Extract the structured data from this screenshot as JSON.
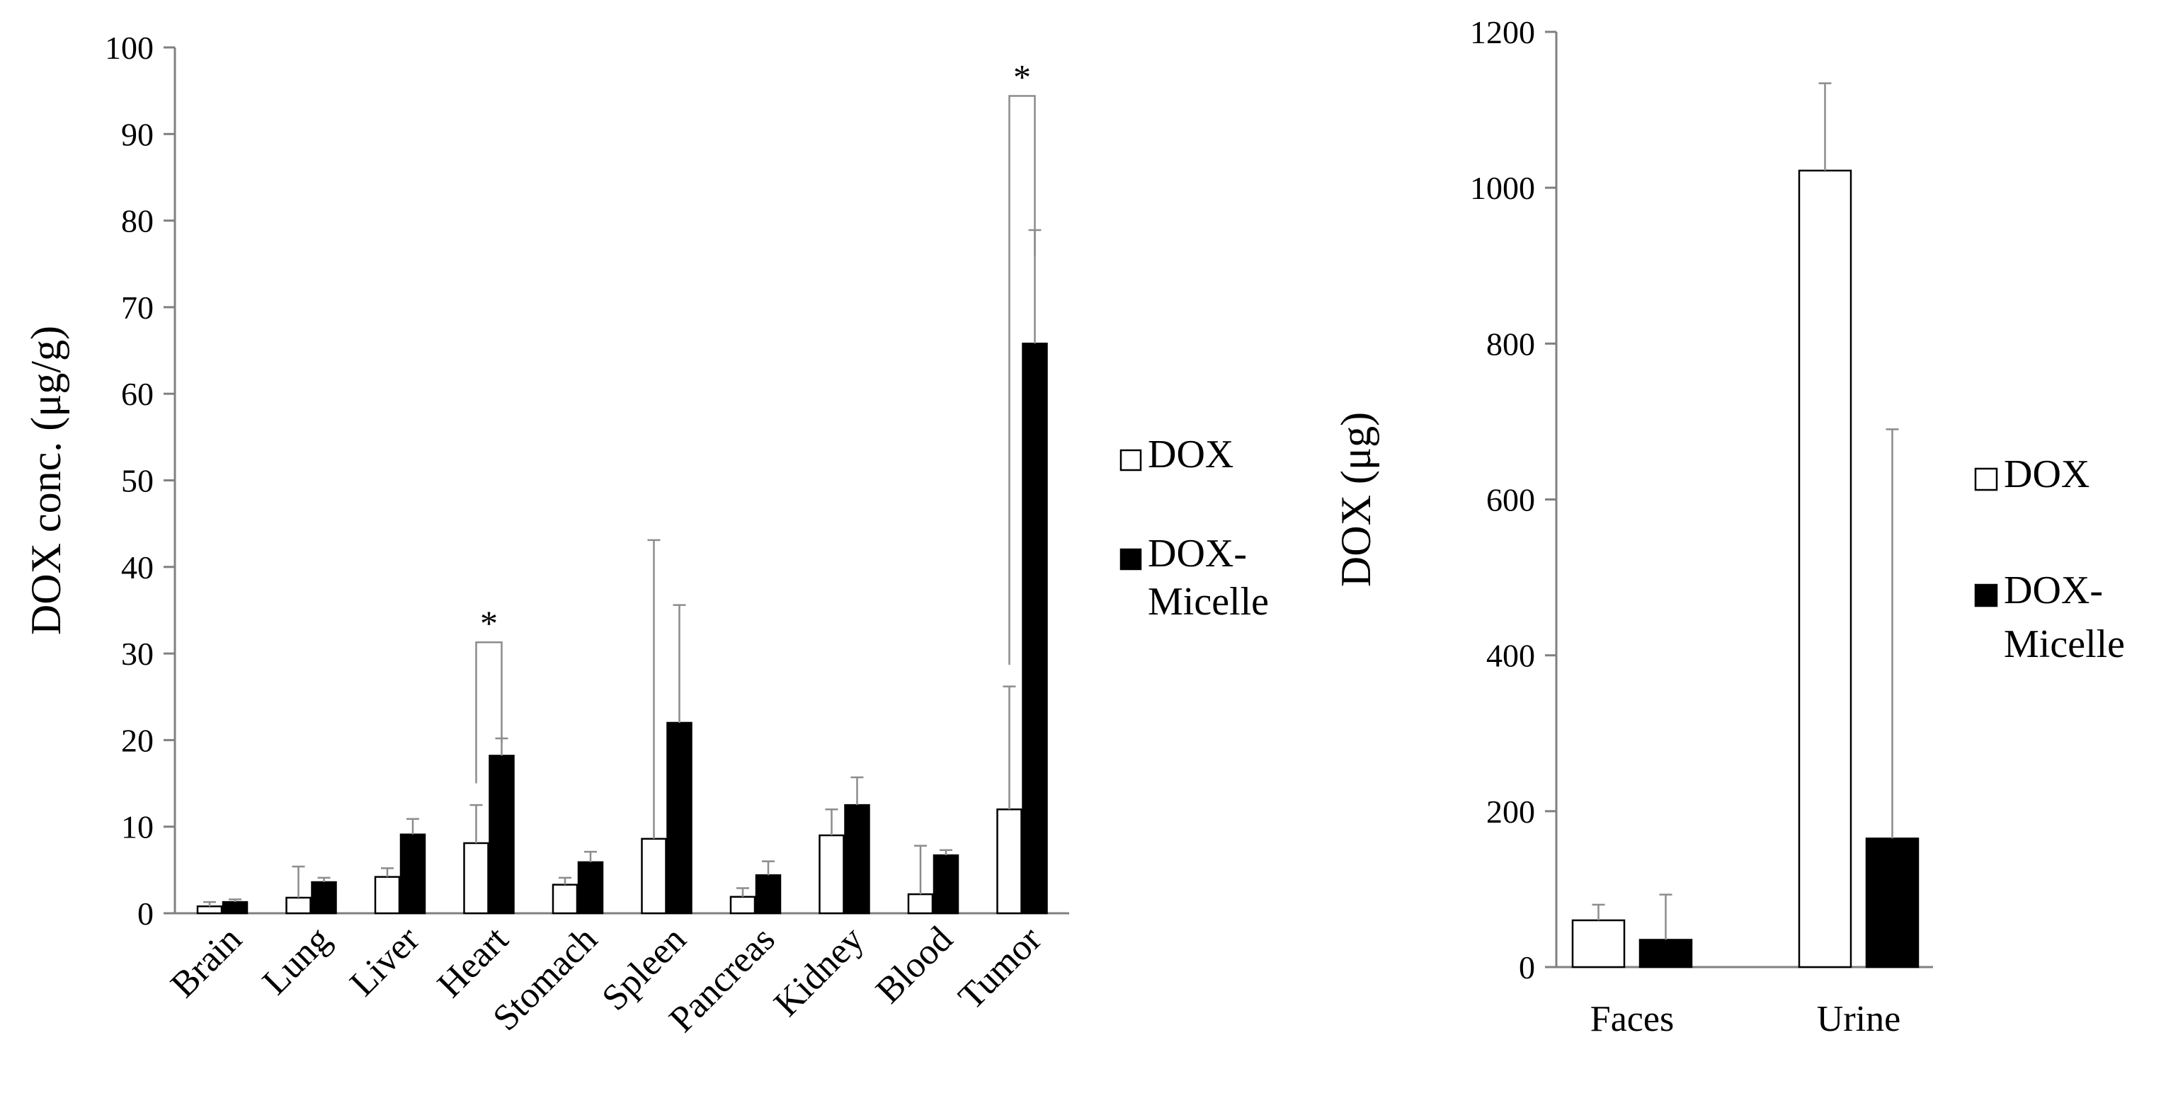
{
  "chart_data": [
    {
      "type": "bar",
      "ylabel": "DOX conc.  (μg/g)",
      "ylim": [
        0,
        100
      ],
      "yticks": [
        "0",
        "10",
        "20",
        "30",
        "40",
        "50",
        "60",
        "70",
        "80",
        "90",
        "100"
      ],
      "categories": [
        "Brain",
        "Lung",
        "Liver",
        "Heart",
        "Stomach",
        "Spleen",
        "Pancreas",
        "Kidney",
        "Blood",
        "Tumor"
      ],
      "series": [
        {
          "name": "DOX",
          "color": "#ffffff",
          "values": [
            0.8,
            1.8,
            4.2,
            8.1,
            3.3,
            8.6,
            1.9,
            9.0,
            2.2,
            12.0
          ],
          "errors": [
            0.5,
            3.6,
            1.0,
            4.4,
            0.8,
            34.5,
            1.0,
            3.0,
            5.6,
            14.2
          ]
        },
        {
          "name": "DOX-\nMicelle",
          "color": "#000000",
          "values": [
            1.3,
            3.6,
            9.1,
            18.2,
            5.9,
            22.0,
            4.4,
            12.5,
            6.7,
            65.8
          ],
          "errors": [
            0.3,
            0.5,
            1.8,
            2.0,
            1.2,
            13.6,
            1.6,
            3.2,
            0.6,
            13.1
          ]
        }
      ],
      "significance": [
        {
          "category": "Heart",
          "label": "*",
          "bracket_top": 31.3
        },
        {
          "category": "Tumor",
          "label": "*",
          "bracket_top": 94.4
        }
      ],
      "legend": {
        "position": "right",
        "entries": [
          "DOX",
          "DOX-\nMicelle"
        ]
      }
    },
    {
      "type": "bar",
      "ylabel": "DOX (μg)",
      "ylim": [
        0,
        1200
      ],
      "yticks": [
        "0",
        "200",
        "400",
        "600",
        "800",
        "1000",
        "1200"
      ],
      "categories": [
        "Faces",
        "Urine"
      ],
      "series": [
        {
          "name": "DOX",
          "color": "#ffffff",
          "values": [
            60,
            1022
          ],
          "errors": [
            20,
            112
          ]
        },
        {
          "name": "DOX-\nMicelle",
          "color": "#000000",
          "values": [
            35,
            165
          ],
          "errors": [
            58,
            525
          ]
        }
      ],
      "legend": {
        "position": "right",
        "entries": [
          "DOX",
          "DOX-\nMicelle"
        ]
      }
    }
  ]
}
